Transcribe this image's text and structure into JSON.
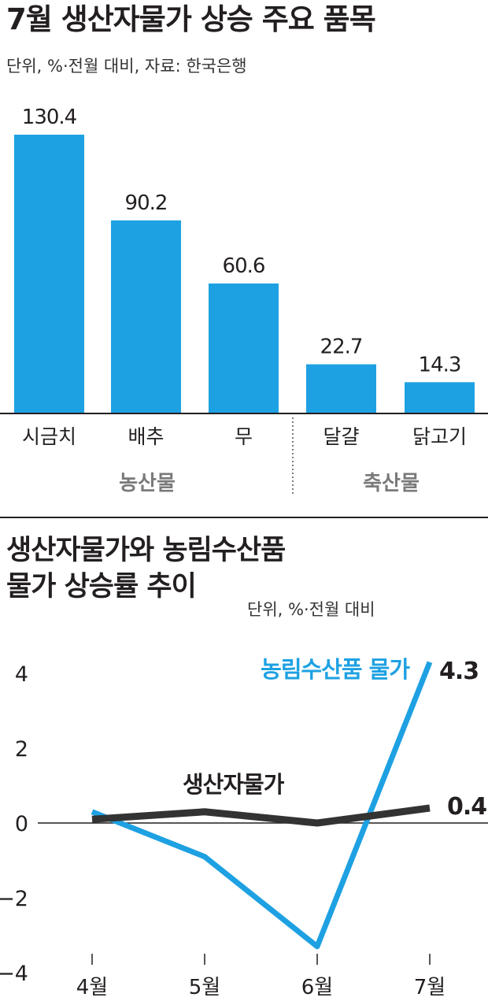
{
  "colors": {
    "accent": "#1ea1e2",
    "dark": "#333333",
    "group": "#7a7a7a"
  },
  "bar_section": {
    "title": "7월 생산자물가 상승 주요 품목",
    "unit": "단위, %·전월 대비, 자료: 한국은행"
  },
  "line_section": {
    "title_line1": "생산자물가와 농림수산품",
    "title_line2": "물가 상승률 추이",
    "unit": "단위, %·전월 대비"
  },
  "chart_data": [
    {
      "type": "bar",
      "categories": [
        "시금치",
        "배추",
        "무",
        "달걀",
        "닭고기"
      ],
      "values": [
        130.4,
        90.2,
        60.6,
        22.7,
        14.3
      ],
      "value_labels": [
        "130.4",
        "90.2",
        "60.6",
        "22.7",
        "14.3"
      ],
      "groups": [
        {
          "name": "농산물",
          "categories": [
            "시금치",
            "배추",
            "무"
          ]
        },
        {
          "name": "축산물",
          "categories": [
            "달걀",
            "닭고기"
          ]
        }
      ],
      "color": "#1ea1e2",
      "title": "7월 생산자물가 상승 주요 품목",
      "ylim": [
        0,
        130.4
      ]
    },
    {
      "type": "line",
      "x": [
        "4월",
        "5월",
        "6월",
        "7월"
      ],
      "series": [
        {
          "name": "농림수산품 물가",
          "values": [
            0.3,
            -0.9,
            -3.3,
            4.3
          ],
          "end_label": "4.3",
          "color": "#1ea1e2"
        },
        {
          "name": "생산자물가",
          "values": [
            0.1,
            0.3,
            0.0,
            0.4
          ],
          "end_label": "0.4",
          "color": "#333333"
        }
      ],
      "yticks": [
        "4",
        "2",
        "0",
        "−2",
        "−4"
      ],
      "ytick_values": [
        4,
        2,
        0,
        -2,
        -4
      ],
      "ylim": [
        -4,
        4
      ],
      "title": "생산자물가와 농림수산품 물가 상승률 추이"
    }
  ]
}
